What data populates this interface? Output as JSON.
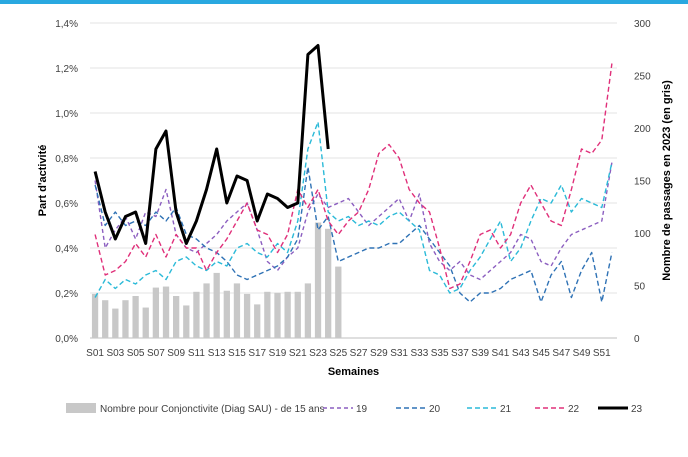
{
  "chart_data": {
    "type": "bar+line",
    "x_categories": [
      "S01",
      "S02",
      "S03",
      "S04",
      "S05",
      "S06",
      "S07",
      "S08",
      "S09",
      "S10",
      "S11",
      "S12",
      "S13",
      "S14",
      "S15",
      "S16",
      "S17",
      "S18",
      "S19",
      "S20",
      "S21",
      "S22",
      "S23",
      "S24",
      "S25",
      "S26",
      "S27",
      "S28",
      "S29",
      "S30",
      "S31",
      "S32",
      "S33",
      "S34",
      "S35",
      "S36",
      "S37",
      "S38",
      "S39",
      "S40",
      "S41",
      "S42",
      "S43",
      "S44",
      "S45",
      "S46",
      "S47",
      "S48",
      "S49",
      "S50",
      "S51",
      "S52"
    ],
    "x_tick_labels": [
      "S01",
      "S03",
      "S05",
      "S07",
      "S09",
      "S11",
      "S13",
      "S15",
      "S17",
      "S19",
      "S21",
      "S23",
      "S25",
      "S27",
      "S29",
      "S31",
      "S33",
      "S35",
      "S37",
      "S39",
      "S41",
      "S43",
      "S45",
      "S47",
      "S49",
      "S51"
    ],
    "xlabel": "Semaines",
    "ylabel_left": "Part d'activité",
    "ylabel_right": "Nombre de passages en 2023 (en gris)",
    "y_left_ticks": [
      "0,0%",
      "0,2%",
      "0,4%",
      "0,6%",
      "0,8%",
      "1,0%",
      "1,2%",
      "1,4%"
    ],
    "y_left_range": [
      0,
      1.4
    ],
    "y_right_ticks": [
      "0",
      "50",
      "100",
      "150",
      "200",
      "250",
      "300"
    ],
    "y_right_range": [
      0,
      300
    ],
    "bars": {
      "name": "Nombre pour Conjonctivite (Diag SAU) - de 15 ans",
      "color": "#c8c8c8",
      "values": [
        42,
        36,
        28,
        36,
        40,
        29,
        48,
        49,
        40,
        31,
        44,
        52,
        62,
        45,
        52,
        42,
        32,
        44,
        43,
        44,
        44,
        52,
        110,
        104,
        68
      ]
    },
    "series": [
      {
        "name": "19",
        "color": "#8c5fc0",
        "dash": "4,3",
        "values": [
          0.7,
          0.4,
          0.48,
          0.54,
          0.44,
          0.56,
          0.54,
          0.66,
          0.46,
          0.4,
          0.38,
          0.42,
          0.46,
          0.52,
          0.56,
          0.6,
          0.48,
          0.34,
          0.3,
          0.36,
          0.4,
          0.56,
          0.64,
          0.58,
          0.6,
          0.62,
          0.56,
          0.5,
          0.54,
          0.58,
          0.62,
          0.52,
          0.64,
          0.42,
          0.34,
          0.3,
          0.34,
          0.28,
          0.26,
          0.3,
          0.34,
          0.38,
          0.46,
          0.44,
          0.34,
          0.32,
          0.4,
          0.46,
          0.48,
          0.5,
          0.52,
          0.78
        ]
      },
      {
        "name": "20",
        "color": "#2f72b5",
        "dash": "5,3",
        "values": [
          0.68,
          0.5,
          0.56,
          0.5,
          0.52,
          0.5,
          0.56,
          0.52,
          0.58,
          0.46,
          0.44,
          0.4,
          0.38,
          0.34,
          0.28,
          0.26,
          0.28,
          0.3,
          0.32,
          0.36,
          0.44,
          0.76,
          0.48,
          0.54,
          0.34,
          0.36,
          0.38,
          0.4,
          0.4,
          0.42,
          0.42,
          0.46,
          0.5,
          0.44,
          0.38,
          0.32,
          0.2,
          0.16,
          0.2,
          0.2,
          0.22,
          0.26,
          0.28,
          0.3,
          0.16,
          0.28,
          0.34,
          0.18,
          0.3,
          0.38,
          0.16,
          0.38
        ]
      },
      {
        "name": "21",
        "color": "#2bbad8",
        "dash": "5,3",
        "values": [
          0.18,
          0.26,
          0.22,
          0.26,
          0.24,
          0.28,
          0.3,
          0.26,
          0.34,
          0.36,
          0.32,
          0.3,
          0.34,
          0.32,
          0.4,
          0.42,
          0.38,
          0.36,
          0.42,
          0.38,
          0.52,
          0.84,
          0.96,
          0.56,
          0.52,
          0.54,
          0.5,
          0.52,
          0.5,
          0.54,
          0.56,
          0.52,
          0.48,
          0.3,
          0.28,
          0.2,
          0.22,
          0.3,
          0.36,
          0.44,
          0.52,
          0.34,
          0.4,
          0.52,
          0.62,
          0.6,
          0.68,
          0.56,
          0.62,
          0.6,
          0.58,
          0.78
        ]
      },
      {
        "name": "22",
        "color": "#e0307a",
        "dash": "5,3",
        "values": [
          0.46,
          0.28,
          0.3,
          0.34,
          0.42,
          0.36,
          0.46,
          0.36,
          0.46,
          0.4,
          0.4,
          0.3,
          0.38,
          0.44,
          0.52,
          0.6,
          0.48,
          0.46,
          0.38,
          0.46,
          0.66,
          0.58,
          0.66,
          0.52,
          0.46,
          0.52,
          0.56,
          0.66,
          0.82,
          0.86,
          0.8,
          0.66,
          0.6,
          0.56,
          0.4,
          0.22,
          0.24,
          0.34,
          0.46,
          0.48,
          0.4,
          0.46,
          0.6,
          0.68,
          0.6,
          0.52,
          0.5,
          0.66,
          0.84,
          0.82,
          0.88,
          1.22
        ]
      },
      {
        "name": "23",
        "color": "#000000",
        "dash": "",
        "values": [
          0.74,
          0.56,
          0.44,
          0.54,
          0.56,
          0.42,
          0.84,
          0.92,
          0.56,
          0.42,
          0.52,
          0.66,
          0.84,
          0.6,
          0.72,
          0.7,
          0.52,
          0.64,
          0.62,
          0.58,
          0.6,
          1.26,
          1.3,
          0.84
        ]
      }
    ],
    "legend_position": "bottom",
    "grid": true
  }
}
